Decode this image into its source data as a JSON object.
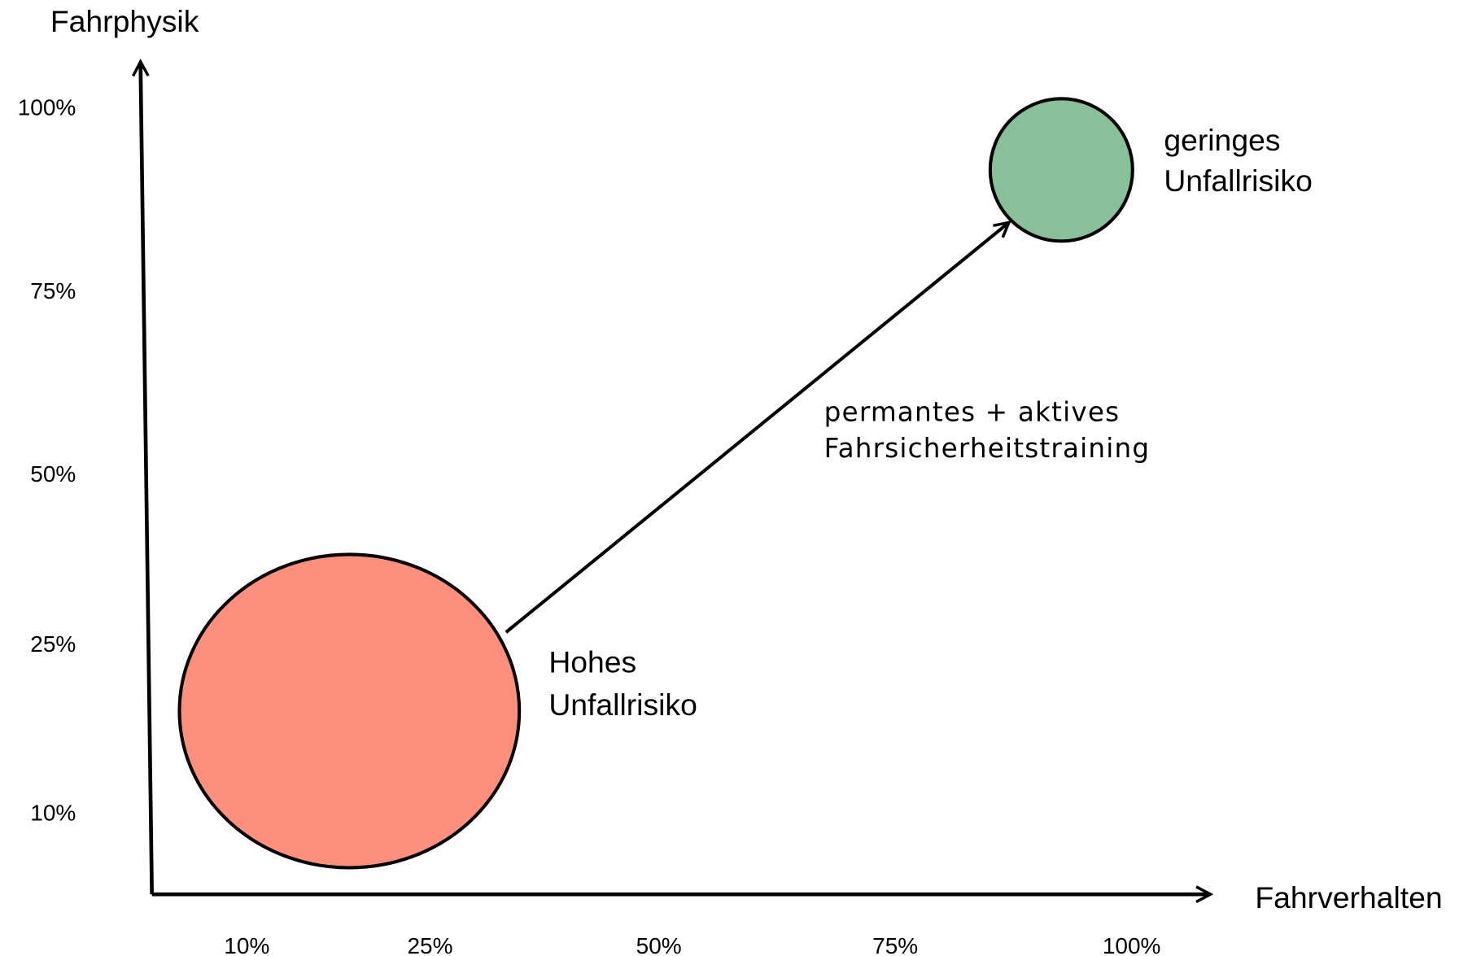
{
  "axes": {
    "y_label": "Fahrphysik",
    "x_label": "Fahrverhalten",
    "y_ticks": [
      "100%",
      "75%",
      "50%",
      "25%",
      "10%"
    ],
    "x_ticks": [
      "10%",
      "25%",
      "50%",
      "75%",
      "100%"
    ]
  },
  "nodes": [
    {
      "label": [
        "Hohes",
        "Unfallrisiko"
      ]
    },
    {
      "label": [
        "geringes",
        "Unfallrisiko"
      ]
    }
  ],
  "arrow_label": [
    "permantes + aktives",
    "Fahrsicherheitstraining"
  ]
}
